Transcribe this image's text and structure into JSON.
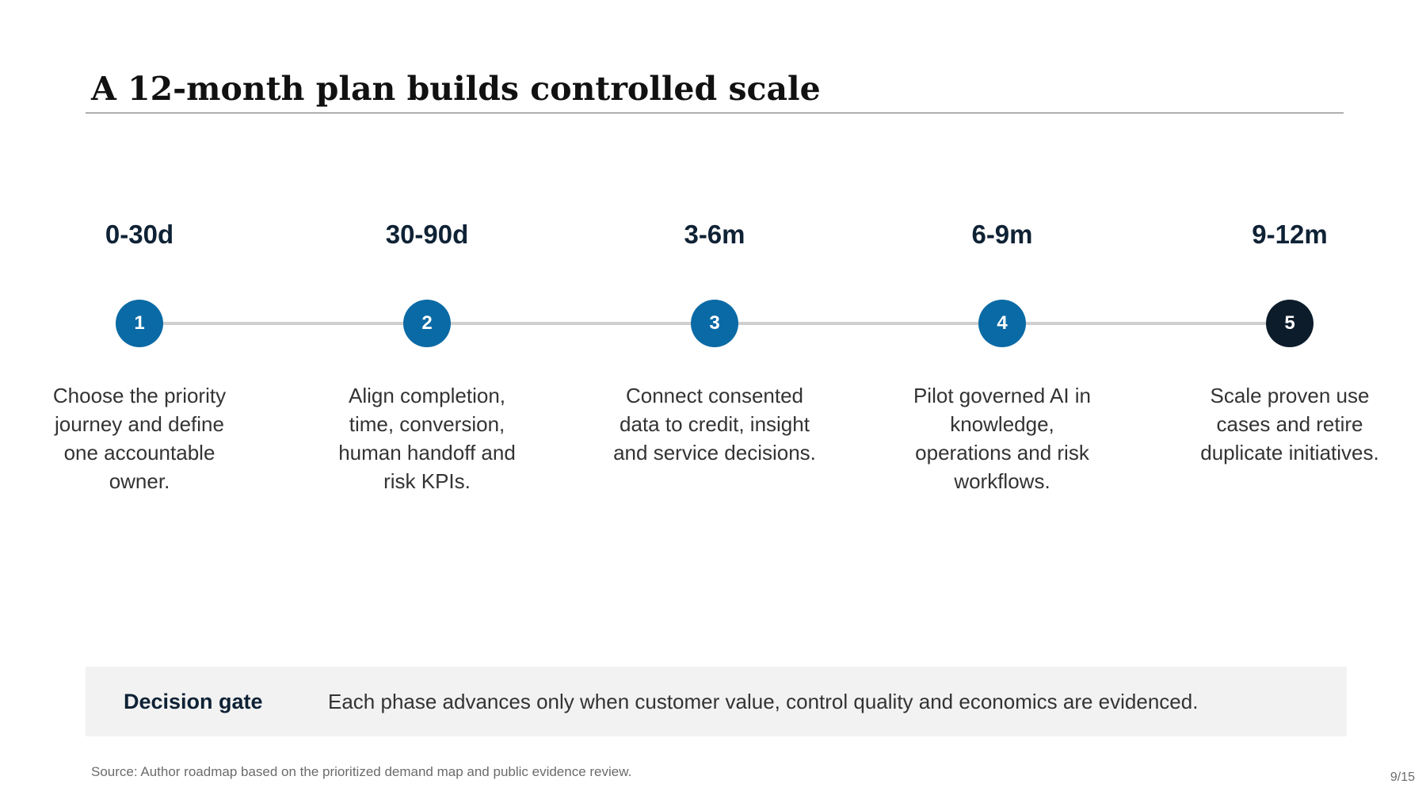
{
  "slide": {
    "title": "A 12-month plan builds controlled scale",
    "source": "Source: Author roadmap based on the prioritized demand map and public evidence review.",
    "page_number": "9/15"
  },
  "colors": {
    "accent_blue": "#0a6aa5",
    "accent_navy": "#0c1c2b",
    "track": "#cfcfcf",
    "gate_background": "#f2f2f2"
  },
  "timeline": {
    "phases": [
      {
        "period": "0-30d",
        "step": "1",
        "description": "Choose the priority journey and define one accountable owner.",
        "marker_color": "#0a6aa5"
      },
      {
        "period": "30-90d",
        "step": "2",
        "description": "Align completion, time, conversion, human handoff and risk KPIs.",
        "marker_color": "#0a6aa5"
      },
      {
        "period": "3-6m",
        "step": "3",
        "description": "Connect consented data to credit, insight and service decisions.",
        "marker_color": "#0a6aa5"
      },
      {
        "period": "6-9m",
        "step": "4",
        "description": "Pilot governed AI in knowledge, operations and risk workflows.",
        "marker_color": "#0a6aa5"
      },
      {
        "period": "9-12m",
        "step": "5",
        "description": "Scale proven use cases and retire duplicate initiatives.",
        "marker_color": "#0c1c2b"
      }
    ]
  },
  "decision_gate": {
    "label": "Decision gate",
    "text": "Each phase advances only when customer value, control quality and economics are evidenced."
  }
}
